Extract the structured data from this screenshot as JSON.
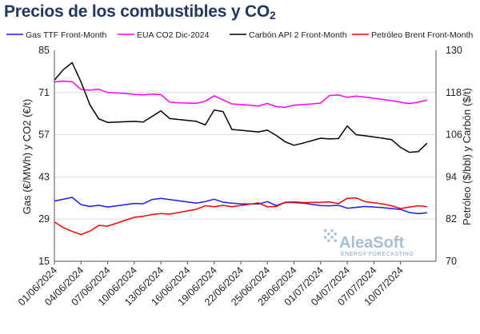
{
  "chart_data": {
    "type": "line",
    "title_main": "Precios de los combustibles y CO",
    "title_sub": "2",
    "ylabel_left": "Gas (€/MWh) y CO2 (€/t)",
    "ylabel_right": "Petróleo ($/bbl) y Carbón ($/t)",
    "ylim_left": [
      15,
      85
    ],
    "ylim_right": [
      70,
      130
    ],
    "yticks_left": [
      "85",
      "71",
      "57",
      "43",
      "29",
      "15"
    ],
    "yticks_right": [
      "130",
      "118",
      "106",
      "94",
      "82",
      "70"
    ],
    "xlim": [
      0,
      43
    ],
    "xtick_positions": [
      0,
      3,
      6,
      9,
      12,
      15,
      18,
      21,
      24,
      27,
      30,
      33,
      36,
      39
    ],
    "xtick_labels": [
      "01/06/2024",
      "04/06/2024",
      "07/06/2024",
      "10/06/2024",
      "13/06/2024",
      "16/06/2024",
      "19/06/2024",
      "22/06/2024",
      "25/06/2024",
      "28/06/2024",
      "01/07/2024",
      "04/07/2024",
      "07/07/2024",
      "10/07/2024"
    ],
    "grid": "horizontal",
    "legend_position": "top",
    "watermark": {
      "brand": "AleaSoft",
      "tagline": "ENERGY FORECASTING"
    },
    "series": [
      {
        "name": "Gas TTF Front-Month",
        "color": "#1a1aff",
        "axis": "left",
        "x": [
          0,
          2,
          3,
          4,
          5,
          6,
          7,
          9,
          10,
          11,
          12,
          13,
          14,
          16,
          17,
          18,
          19,
          21,
          22,
          23,
          24,
          25,
          26,
          27,
          28,
          30,
          31,
          32,
          33,
          35,
          36,
          37,
          38,
          39,
          40,
          41,
          42
        ],
        "y": [
          35.0,
          36.2,
          33.8,
          33.2,
          33.6,
          33.0,
          33.4,
          34.2,
          34.1,
          35.5,
          35.9,
          35.5,
          35.1,
          34.3,
          34.8,
          35.6,
          34.6,
          34.0,
          34.0,
          34.0,
          34.8,
          33.5,
          34.5,
          34.5,
          34.3,
          33.5,
          33.4,
          33.6,
          32.6,
          33.2,
          33.0,
          32.8,
          32.5,
          32.2,
          31.2,
          30.8,
          31.1
        ]
      },
      {
        "name": "EUA CO2 Dic-2024",
        "color": "#ff00ff",
        "axis": "left",
        "x": [
          0,
          1,
          2,
          3,
          4,
          5,
          6,
          8,
          9,
          10,
          11,
          12,
          13,
          14,
          16,
          17,
          18,
          19,
          20,
          22,
          23,
          24,
          25,
          26,
          27,
          28,
          29,
          30,
          31,
          32,
          33,
          34,
          35,
          36,
          38,
          40,
          41,
          42
        ],
        "y": [
          74.5,
          74.8,
          74.6,
          72.0,
          71.8,
          72.1,
          71.0,
          70.7,
          70.4,
          70.2,
          70.5,
          70.3,
          67.8,
          67.6,
          67.4,
          68.1,
          69.9,
          68.6,
          67.2,
          66.8,
          66.5,
          67.4,
          66.3,
          66.1,
          66.8,
          67.0,
          67.2,
          67.5,
          70.0,
          70.2,
          69.4,
          69.8,
          69.5,
          69.1,
          68.3,
          67.3,
          67.8,
          68.5
        ]
      },
      {
        "name": "Carbón API 2 Front-Month",
        "color": "#000000",
        "axis": "right",
        "x": [
          0,
          1,
          2,
          3,
          4,
          5,
          6,
          9,
          10,
          11,
          12,
          13,
          16,
          17,
          18,
          19,
          20,
          23,
          24,
          25,
          26,
          27,
          28,
          30,
          31,
          32,
          33,
          34,
          35,
          37,
          38,
          39,
          40,
          41,
          42
        ],
        "y": [
          121.5,
          124.5,
          126.5,
          121.0,
          114.5,
          110.5,
          109.5,
          109.8,
          109.6,
          111.2,
          112.8,
          110.6,
          109.8,
          108.8,
          113.0,
          112.6,
          107.5,
          106.8,
          107.3,
          105.8,
          104.0,
          103.0,
          103.6,
          105.0,
          104.8,
          104.9,
          108.5,
          106.0,
          105.7,
          105.0,
          104.6,
          102.4,
          101.0,
          101.2,
          103.6
        ]
      },
      {
        "name": "Petróleo Brent Front-Month",
        "color": "#ff0000",
        "axis": "right",
        "x": [
          0,
          1,
          2,
          3,
          4,
          5,
          6,
          9,
          10,
          11,
          12,
          13,
          16,
          17,
          18,
          19,
          20,
          23,
          24,
          25,
          26,
          27,
          28,
          30,
          31,
          32,
          33,
          34,
          35,
          37,
          38,
          39,
          40,
          41,
          42
        ],
        "y": [
          81.2,
          79.6,
          78.5,
          77.6,
          78.6,
          80.2,
          80.0,
          82.5,
          82.8,
          83.3,
          83.6,
          83.4,
          84.8,
          85.8,
          85.5,
          85.9,
          85.5,
          86.6,
          85.5,
          85.6,
          86.8,
          86.9,
          86.7,
          86.8,
          86.9,
          86.4,
          87.9,
          88.0,
          87.0,
          86.3,
          85.8,
          85.0,
          85.4,
          85.8,
          85.5
        ]
      }
    ]
  }
}
